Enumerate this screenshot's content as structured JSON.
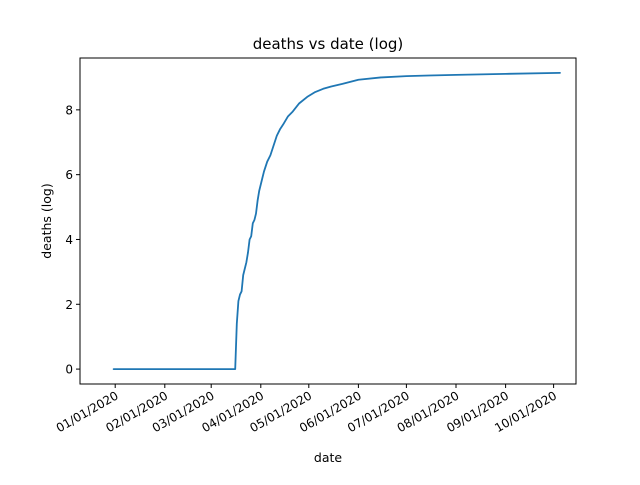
{
  "chart_data": {
    "type": "line",
    "title": "deaths vs date (log)",
    "xlabel": "date",
    "ylabel": "deaths (log)",
    "x_tick_labels": [
      "01/01/2020",
      "02/01/2020",
      "03/01/2020",
      "04/01/2020",
      "05/01/2020",
      "06/01/2020",
      "07/01/2020",
      "08/01/2020",
      "09/01/2020",
      "10/01/2020"
    ],
    "y_ticks": [
      0,
      2,
      4,
      6,
      8
    ],
    "xlim": [
      "2019-12-10",
      "2020-10-15"
    ],
    "ylim": [
      -0.46,
      9.6
    ],
    "grid": false,
    "line_color": "#1f77b4",
    "series": [
      {
        "x": [
          "2019-12-31",
          "2020-01-15",
          "2020-02-01",
          "2020-02-15",
          "2020-03-01",
          "2020-03-15",
          "2020-03-16",
          "2020-03-17",
          "2020-03-18",
          "2020-03-19",
          "2020-03-20",
          "2020-03-21",
          "2020-03-22",
          "2020-03-23",
          "2020-03-24",
          "2020-03-25",
          "2020-03-26",
          "2020-03-27",
          "2020-03-28",
          "2020-03-29",
          "2020-03-30",
          "2020-03-31",
          "2020-04-01",
          "2020-04-02",
          "2020-04-03",
          "2020-04-05",
          "2020-04-07",
          "2020-04-09",
          "2020-04-11",
          "2020-04-13",
          "2020-04-15",
          "2020-04-18",
          "2020-04-21",
          "2020-04-25",
          "2020-04-30",
          "2020-05-05",
          "2020-05-10",
          "2020-05-15",
          "2020-05-22",
          "2020-06-01",
          "2020-06-15",
          "2020-07-01",
          "2020-07-15",
          "2020-08-01",
          "2020-09-01",
          "2020-10-05"
        ],
        "values": [
          0,
          0,
          0,
          0,
          0,
          0,
          0,
          1.4,
          2.1,
          2.3,
          2.4,
          2.9,
          3.1,
          3.3,
          3.6,
          4.0,
          4.1,
          4.5,
          4.6,
          4.8,
          5.2,
          5.5,
          5.7,
          5.9,
          6.1,
          6.4,
          6.6,
          6.9,
          7.2,
          7.4,
          7.55,
          7.8,
          7.95,
          8.2,
          8.4,
          8.55,
          8.65,
          8.72,
          8.8,
          8.93,
          9.0,
          9.04,
          9.06,
          9.08,
          9.11,
          9.14
        ]
      }
    ]
  }
}
